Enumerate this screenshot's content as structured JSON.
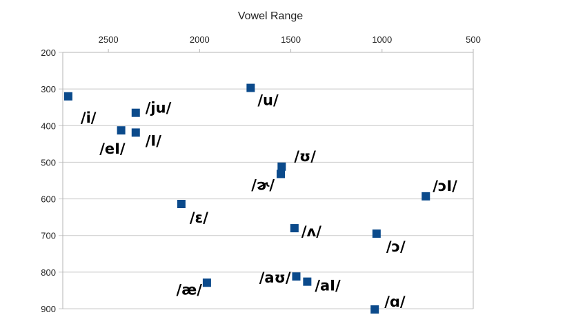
{
  "chart_data": {
    "type": "scatter",
    "title": "Vowel Range",
    "xlabel": "",
    "ylabel": "",
    "x_axis": {
      "min": 500,
      "max": 2750,
      "reversed": true,
      "position": "top",
      "ticks": [
        2500,
        2000,
        1500,
        1000,
        500
      ]
    },
    "y_axis": {
      "min": 200,
      "max": 900,
      "reversed": true,
      "position": "left",
      "ticks": [
        200,
        300,
        400,
        500,
        600,
        700,
        800,
        900
      ]
    },
    "grid": {
      "horizontal": true,
      "vertical": false
    },
    "legend": "none",
    "marker": {
      "shape": "square",
      "color": "#0b4a8b"
    },
    "points": [
      {
        "label": "/i/",
        "x": 2720,
        "y": 320
      },
      {
        "label": "/ju/",
        "x": 2350,
        "y": 365
      },
      {
        "label": "/u/",
        "x": 1720,
        "y": 297
      },
      {
        "label": "/eI/",
        "x": 2430,
        "y": 413
      },
      {
        "label": "/I/",
        "x": 2350,
        "y": 419
      },
      {
        "label": "/ʊ/",
        "x": 1550,
        "y": 512
      },
      {
        "label": "/ɚ/",
        "x": 1555,
        "y": 532
      },
      {
        "label": "/ɔI/",
        "x": 760,
        "y": 593
      },
      {
        "label": "/ɛ/",
        "x": 2100,
        "y": 614
      },
      {
        "label": "/ʌ/",
        "x": 1480,
        "y": 680
      },
      {
        "label": "/ɔ/",
        "x": 1030,
        "y": 695
      },
      {
        "label": "/æ/",
        "x": 1960,
        "y": 829
      },
      {
        "label": "/aʊ/",
        "x": 1470,
        "y": 812
      },
      {
        "label": "/aI/",
        "x": 1410,
        "y": 826
      },
      {
        "label": "/ɑ/",
        "x": 1040,
        "y": 902
      }
    ]
  }
}
